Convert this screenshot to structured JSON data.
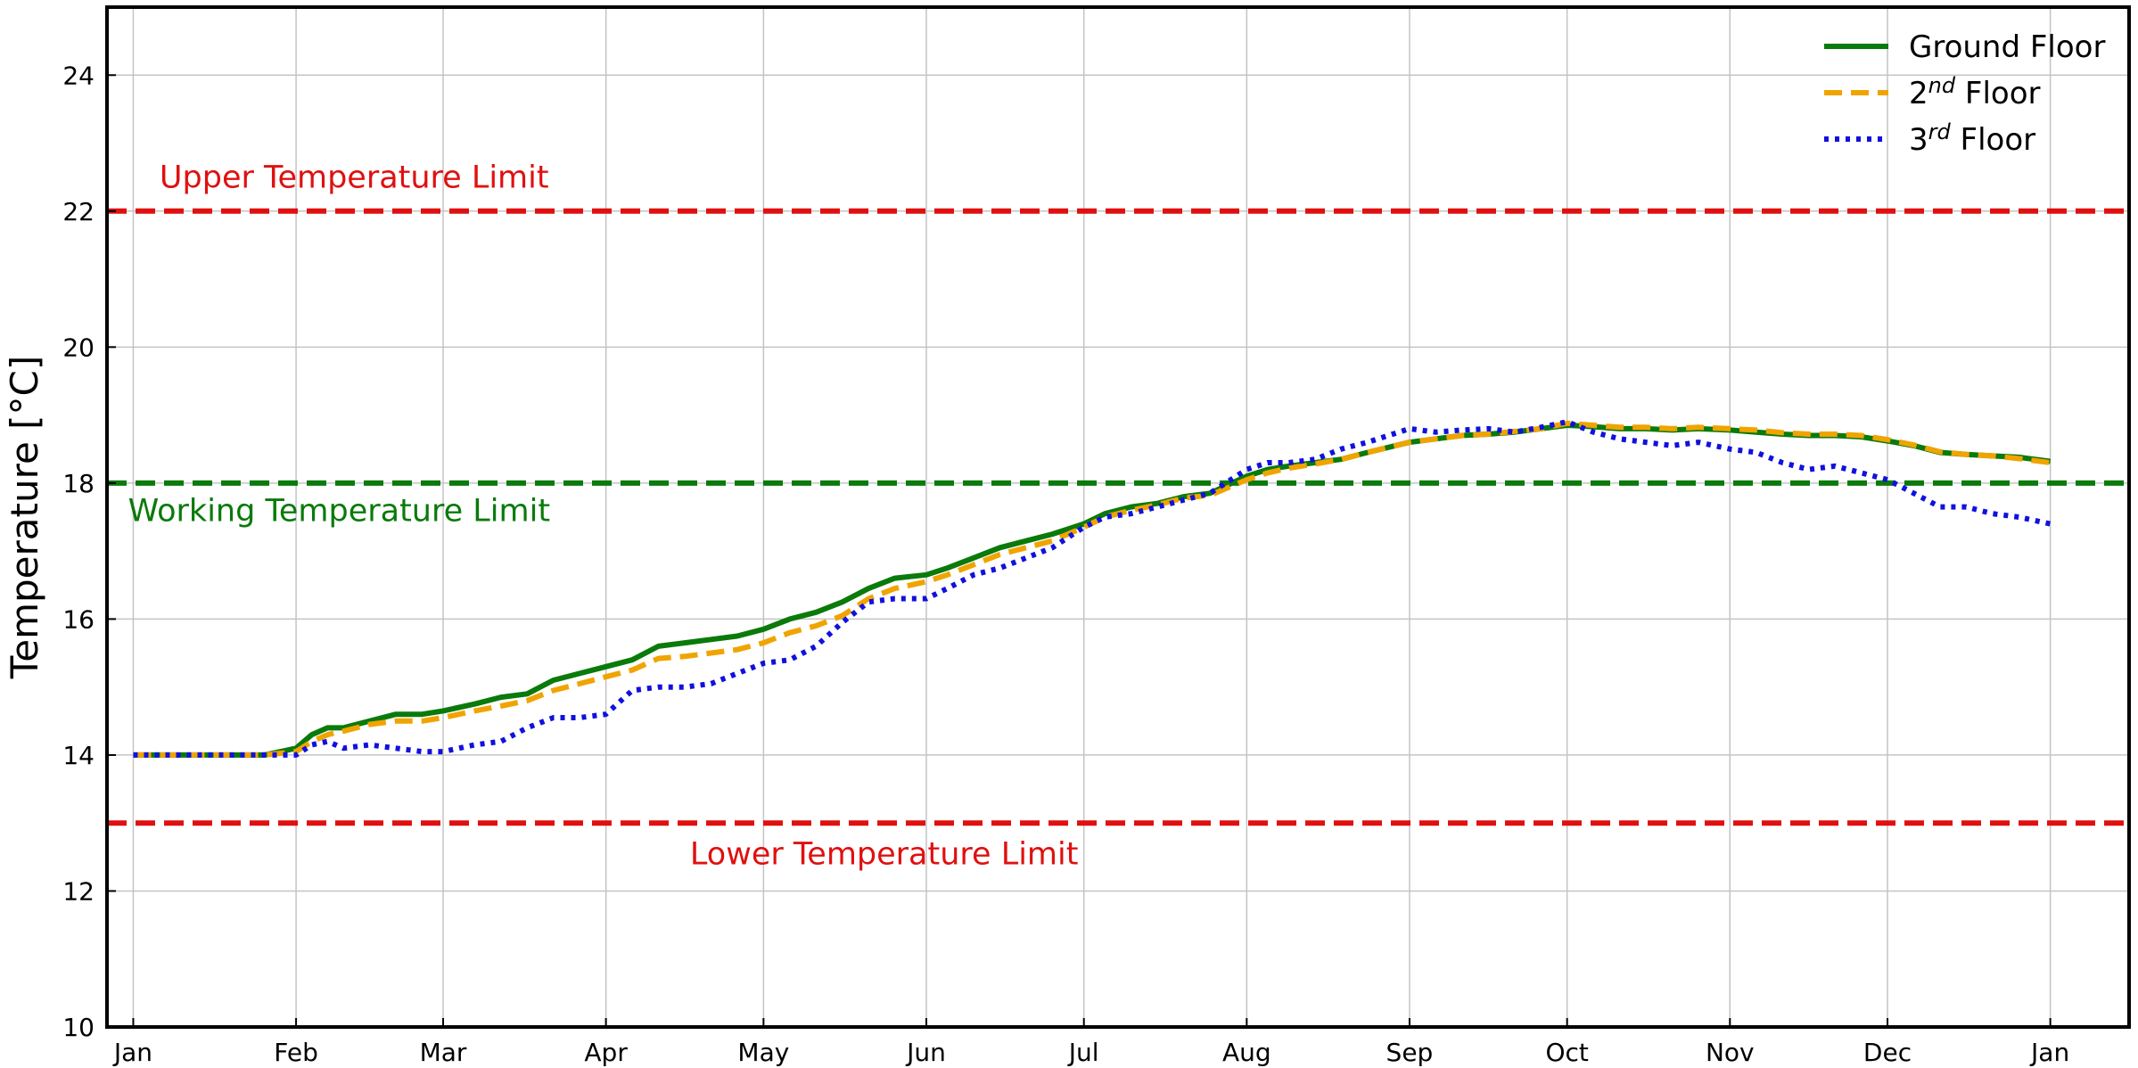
{
  "chart_data": {
    "type": "line",
    "title": "",
    "xlabel": "",
    "ylabel": "Temperature [°C]",
    "ylim": [
      10,
      25
    ],
    "y_ticks": [
      10,
      12,
      14,
      16,
      18,
      20,
      22,
      24
    ],
    "x_range_days": [
      -5,
      380
    ],
    "x_ticks": [
      {
        "label": "Jan",
        "day": 0
      },
      {
        "label": "Feb",
        "day": 31
      },
      {
        "label": "Mar",
        "day": 59
      },
      {
        "label": "Apr",
        "day": 90
      },
      {
        "label": "May",
        "day": 120
      },
      {
        "label": "Jun",
        "day": 151
      },
      {
        "label": "Jul",
        "day": 181
      },
      {
        "label": "Aug",
        "day": 212
      },
      {
        "label": "Sep",
        "day": 243
      },
      {
        "label": "Oct",
        "day": 273
      },
      {
        "label": "Nov",
        "day": 304
      },
      {
        "label": "Dec",
        "day": 334
      },
      {
        "label": "Jan",
        "day": 365
      }
    ],
    "grid": true,
    "legend_position": "top-right",
    "series": [
      {
        "name": "Ground Floor",
        "legend_main": "Ground Floor",
        "legend_sup": "",
        "legend_tail": "",
        "color": "#0a7a0a",
        "style": "solid",
        "x": [
          0,
          10,
          20,
          25,
          31,
          34,
          37,
          40,
          45,
          50,
          55,
          59,
          65,
          70,
          75,
          80,
          85,
          90,
          95,
          100,
          105,
          110,
          115,
          120,
          125,
          130,
          135,
          140,
          145,
          151,
          155,
          160,
          165,
          170,
          175,
          181,
          185,
          190,
          195,
          200,
          205,
          212,
          216,
          220,
          225,
          230,
          235,
          243,
          248,
          253,
          258,
          263,
          268,
          273,
          278,
          283,
          288,
          293,
          298,
          304,
          309,
          314,
          319,
          324,
          329,
          334,
          339,
          344,
          349,
          354,
          359,
          365
        ],
        "y": [
          14.0,
          14.0,
          14.0,
          14.0,
          14.1,
          14.3,
          14.4,
          14.4,
          14.5,
          14.6,
          14.6,
          14.65,
          14.75,
          14.85,
          14.9,
          15.1,
          15.2,
          15.3,
          15.4,
          15.6,
          15.65,
          15.7,
          15.75,
          15.85,
          16.0,
          16.1,
          16.25,
          16.45,
          16.6,
          16.65,
          16.75,
          16.9,
          17.05,
          17.15,
          17.25,
          17.4,
          17.55,
          17.65,
          17.7,
          17.8,
          17.85,
          18.1,
          18.2,
          18.25,
          18.3,
          18.35,
          18.45,
          18.6,
          18.65,
          18.7,
          18.72,
          18.75,
          18.8,
          18.85,
          18.83,
          18.8,
          18.8,
          18.78,
          18.8,
          18.78,
          18.75,
          18.72,
          18.7,
          18.7,
          18.68,
          18.62,
          18.55,
          18.45,
          18.42,
          18.4,
          18.38,
          18.32
        ]
      },
      {
        "name": "2nd Floor",
        "legend_main": "2",
        "legend_sup": "nd",
        "legend_tail": " Floor",
        "color": "#f0a400",
        "style": "dashed",
        "x": [
          0,
          10,
          20,
          25,
          31,
          34,
          37,
          40,
          45,
          50,
          55,
          59,
          65,
          70,
          75,
          80,
          85,
          90,
          95,
          100,
          105,
          110,
          115,
          120,
          125,
          130,
          135,
          140,
          145,
          151,
          155,
          160,
          165,
          170,
          175,
          181,
          185,
          190,
          195,
          200,
          205,
          212,
          216,
          220,
          225,
          230,
          235,
          243,
          248,
          253,
          258,
          263,
          268,
          273,
          278,
          283,
          288,
          293,
          298,
          304,
          309,
          314,
          319,
          324,
          329,
          334,
          339,
          344,
          349,
          354,
          359,
          365
        ],
        "y": [
          14.0,
          14.0,
          14.0,
          14.0,
          14.05,
          14.2,
          14.3,
          14.35,
          14.45,
          14.5,
          14.5,
          14.55,
          14.65,
          14.72,
          14.8,
          14.95,
          15.05,
          15.15,
          15.25,
          15.42,
          15.45,
          15.5,
          15.55,
          15.65,
          15.8,
          15.9,
          16.05,
          16.3,
          16.45,
          16.55,
          16.65,
          16.8,
          16.95,
          17.05,
          17.15,
          17.35,
          17.5,
          17.6,
          17.68,
          17.78,
          17.82,
          18.05,
          18.15,
          18.22,
          18.28,
          18.35,
          18.45,
          18.6,
          18.65,
          18.7,
          18.72,
          18.76,
          18.8,
          18.88,
          18.85,
          18.82,
          18.82,
          18.8,
          18.82,
          18.8,
          18.78,
          18.74,
          18.72,
          18.72,
          18.7,
          18.64,
          18.56,
          18.46,
          18.42,
          18.4,
          18.36,
          18.3
        ]
      },
      {
        "name": "3rd Floor",
        "legend_main": "3",
        "legend_sup": "rd",
        "legend_tail": " Floor",
        "color": "#1010e0",
        "style": "dotted",
        "x": [
          0,
          10,
          20,
          25,
          31,
          34,
          37,
          40,
          45,
          50,
          55,
          59,
          65,
          70,
          75,
          80,
          85,
          90,
          95,
          100,
          105,
          110,
          115,
          120,
          125,
          130,
          135,
          140,
          145,
          151,
          155,
          160,
          165,
          170,
          175,
          181,
          185,
          190,
          195,
          200,
          205,
          212,
          216,
          220,
          225,
          230,
          235,
          243,
          248,
          253,
          258,
          263,
          268,
          273,
          278,
          283,
          288,
          293,
          298,
          304,
          309,
          314,
          319,
          324,
          329,
          334,
          339,
          344,
          349,
          354,
          359,
          365
        ],
        "y": [
          14.0,
          14.0,
          14.0,
          14.0,
          14.0,
          14.15,
          14.2,
          14.1,
          14.15,
          14.1,
          14.05,
          14.05,
          14.15,
          14.2,
          14.4,
          14.55,
          14.55,
          14.6,
          14.95,
          15.0,
          15.0,
          15.05,
          15.2,
          15.35,
          15.4,
          15.6,
          15.95,
          16.25,
          16.3,
          16.3,
          16.45,
          16.65,
          16.75,
          16.9,
          17.05,
          17.35,
          17.5,
          17.55,
          17.65,
          17.75,
          17.85,
          18.2,
          18.3,
          18.3,
          18.35,
          18.5,
          18.6,
          18.8,
          18.75,
          18.78,
          18.8,
          18.75,
          18.82,
          18.9,
          18.75,
          18.65,
          18.6,
          18.55,
          18.6,
          18.5,
          18.45,
          18.3,
          18.2,
          18.25,
          18.15,
          18.05,
          17.85,
          17.65,
          17.65,
          17.55,
          17.5,
          17.4
        ]
      }
    ],
    "reference_lines": [
      {
        "name": "Upper Temperature Limit",
        "y": 22,
        "color": "#e01010",
        "label": "Upper Temperature Limit",
        "label_x_day": 5,
        "label_y": 22.5
      },
      {
        "name": "Working Temperature Limit",
        "y": 18,
        "color": "#0a7a0a",
        "label": "Working Temperature Limit",
        "label_x_day": -1,
        "label_y": 17.6
      },
      {
        "name": "Lower Temperature Limit",
        "y": 13,
        "color": "#e01010",
        "label": "Lower Temperature Limit",
        "label_x_day": 106,
        "label_y": 12.55
      }
    ]
  }
}
